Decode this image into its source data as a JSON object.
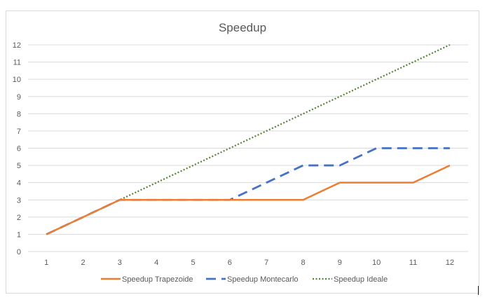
{
  "chart_data": {
    "type": "line",
    "title": "Speedup",
    "xlabel": "",
    "ylabel": "",
    "x": [
      1,
      2,
      3,
      4,
      5,
      6,
      7,
      8,
      9,
      10,
      11,
      12
    ],
    "ylim": [
      0,
      12
    ],
    "yticks": [
      0,
      1,
      2,
      3,
      4,
      5,
      6,
      7,
      8,
      9,
      10,
      11,
      12
    ],
    "grid": true,
    "legend_position": "bottom",
    "series": [
      {
        "name": "Speedup Trapezoide",
        "color": "#ed7d31",
        "style": "solid",
        "values": [
          1,
          2,
          3,
          3,
          3,
          3,
          3,
          3,
          4,
          4,
          4,
          5
        ]
      },
      {
        "name": "Speedup Montecarlo",
        "color": "#4472c4",
        "style": "dashed",
        "values": [
          1,
          2,
          3,
          3,
          3,
          3,
          4,
          5,
          5,
          6,
          6,
          6
        ]
      },
      {
        "name": "Speedup Ideale",
        "color": "#548235",
        "style": "dotted",
        "values": [
          1,
          2,
          3,
          4,
          5,
          6,
          7,
          8,
          9,
          10,
          11,
          12
        ]
      }
    ]
  }
}
